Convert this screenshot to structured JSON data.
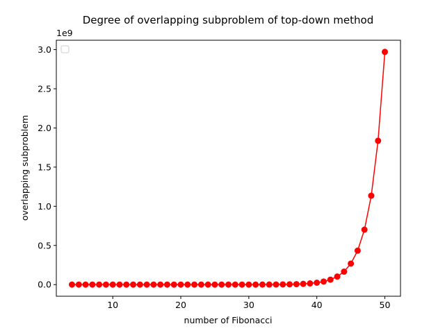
{
  "chart_data": {
    "type": "line",
    "title": "Degree of overlapping subproblem of top-down method",
    "x_label": "number of Fibonacci",
    "y_label": "overlapping subproblem",
    "y_offset_label": "1e9",
    "x": [
      4,
      5,
      6,
      7,
      8,
      9,
      10,
      11,
      12,
      13,
      14,
      15,
      16,
      17,
      18,
      19,
      20,
      21,
      22,
      23,
      24,
      25,
      26,
      27,
      28,
      29,
      30,
      31,
      32,
      33,
      34,
      35,
      36,
      37,
      38,
      39,
      40,
      41,
      42,
      43,
      44,
      45,
      46,
      47,
      48,
      49,
      50
    ],
    "series": [
      {
        "color": "#ff0000",
        "marker": "o",
        "values": [
          1,
          1,
          2,
          3,
          5,
          8,
          13,
          21,
          34,
          55,
          89,
          144,
          233,
          377,
          610,
          987,
          1597,
          2584,
          4181,
          6765,
          10946,
          17711,
          28657,
          46368,
          75025,
          121393,
          196418,
          317811,
          514229,
          832040,
          1346269,
          2178309,
          3524578,
          5702887,
          9227465,
          14930352,
          24157817,
          39088169,
          63245986,
          102334155,
          165580141,
          267914296,
          433494437,
          701408733,
          1134903170,
          1836311903,
          2971215073
        ]
      }
    ],
    "xlim": [
      1.7,
      52.3
    ],
    "xticks": [
      10,
      20,
      30,
      40,
      50
    ],
    "ylim": [
      -148560753,
      3119775826
    ],
    "yticks": [
      {
        "value": 0,
        "label": "0.0"
      },
      {
        "value": 500000000,
        "label": "0.5"
      },
      {
        "value": 1000000000,
        "label": "1.0"
      },
      {
        "value": 1500000000,
        "label": "1.5"
      },
      {
        "value": 2000000000,
        "label": "2.0"
      },
      {
        "value": 2500000000,
        "label": "2.5"
      },
      {
        "value": 3000000000,
        "label": "3.0"
      }
    ],
    "legend_loc": "upper left"
  }
}
